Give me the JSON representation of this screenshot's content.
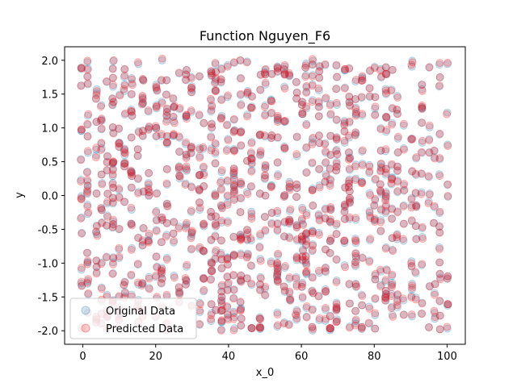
{
  "chart_data": {
    "type": "scatter",
    "title": "Function Nguyen_F6",
    "xlabel": "x_0",
    "ylabel": "y",
    "xlim": [
      -5,
      105
    ],
    "ylim": [
      -2.2,
      2.2
    ],
    "xticks": [
      0,
      20,
      40,
      60,
      80,
      100
    ],
    "yticks": [
      -2.0,
      -1.5,
      -1.0,
      -0.5,
      0.0,
      0.5,
      1.0,
      1.5,
      2.0
    ],
    "grid": false,
    "legend_position": "lower-left",
    "x_domain": [
      0,
      100
    ],
    "y_domain": [
      -2,
      2
    ],
    "x_distinct_values": 61,
    "series": [
      {
        "name": "Original Data",
        "color": "#1f77b4",
        "alpha": 0.2,
        "point_count": 1000,
        "seed": 7
      },
      {
        "name": "Predicted Data",
        "color": "#ff0000",
        "alpha": 0.2,
        "point_count": 1000,
        "seed": 7
      }
    ]
  }
}
